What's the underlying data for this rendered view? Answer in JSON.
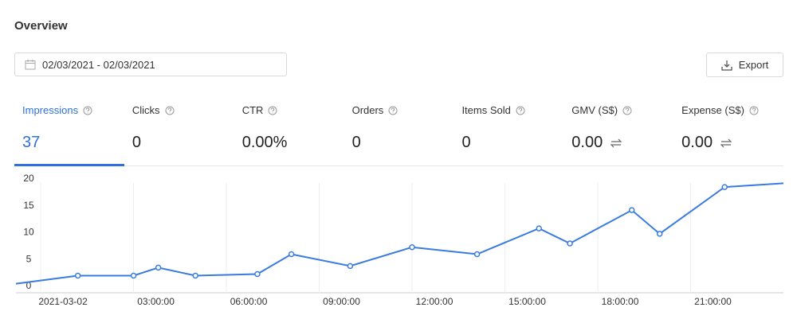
{
  "header": {
    "title": "Overview"
  },
  "date_range": "02/03/2021 - 02/03/2021",
  "export_button": "Export",
  "metrics": [
    {
      "label": "Impressions",
      "value": "37"
    },
    {
      "label": "Clicks",
      "value": "0"
    },
    {
      "label": "CTR",
      "value": "0.00%"
    },
    {
      "label": "Orders",
      "value": "0"
    },
    {
      "label": "Items Sold",
      "value": "0"
    },
    {
      "label": "GMV (S$)",
      "value": "0.00"
    },
    {
      "label": "Expense (S$)",
      "value": "0.00"
    }
  ],
  "chart_data": {
    "type": "line",
    "x": [
      -0.8,
      1.2,
      3,
      3.8,
      5,
      7,
      8.1,
      10,
      12,
      14.1,
      16.1,
      17.1,
      19.1,
      20,
      22.1,
      24
    ],
    "series": [
      {
        "name": "Impressions",
        "color": "#3a7be0",
        "values": [
          0.5,
          2,
          2,
          3.5,
          2,
          2.3,
          6,
          3.8,
          7.3,
          6,
          10.8,
          8,
          14.2,
          9.8,
          18.5,
          19.2
        ]
      }
    ],
    "xlim": [
      -0.8,
      24
    ],
    "xticks": [
      {
        "value": 0,
        "label": "2021-03-02"
      },
      {
        "value": 3,
        "label": "03:00:00"
      },
      {
        "value": 6,
        "label": "06:00:00"
      },
      {
        "value": 9,
        "label": "09:00:00"
      },
      {
        "value": 12,
        "label": "12:00:00"
      },
      {
        "value": 15,
        "label": "15:00:00"
      },
      {
        "value": 18,
        "label": "18:00:00"
      },
      {
        "value": 21,
        "label": "21:00:00"
      }
    ],
    "ylim": [
      0,
      20
    ],
    "yticks": [
      0,
      5,
      10,
      15,
      20
    ],
    "xgrid": true
  }
}
